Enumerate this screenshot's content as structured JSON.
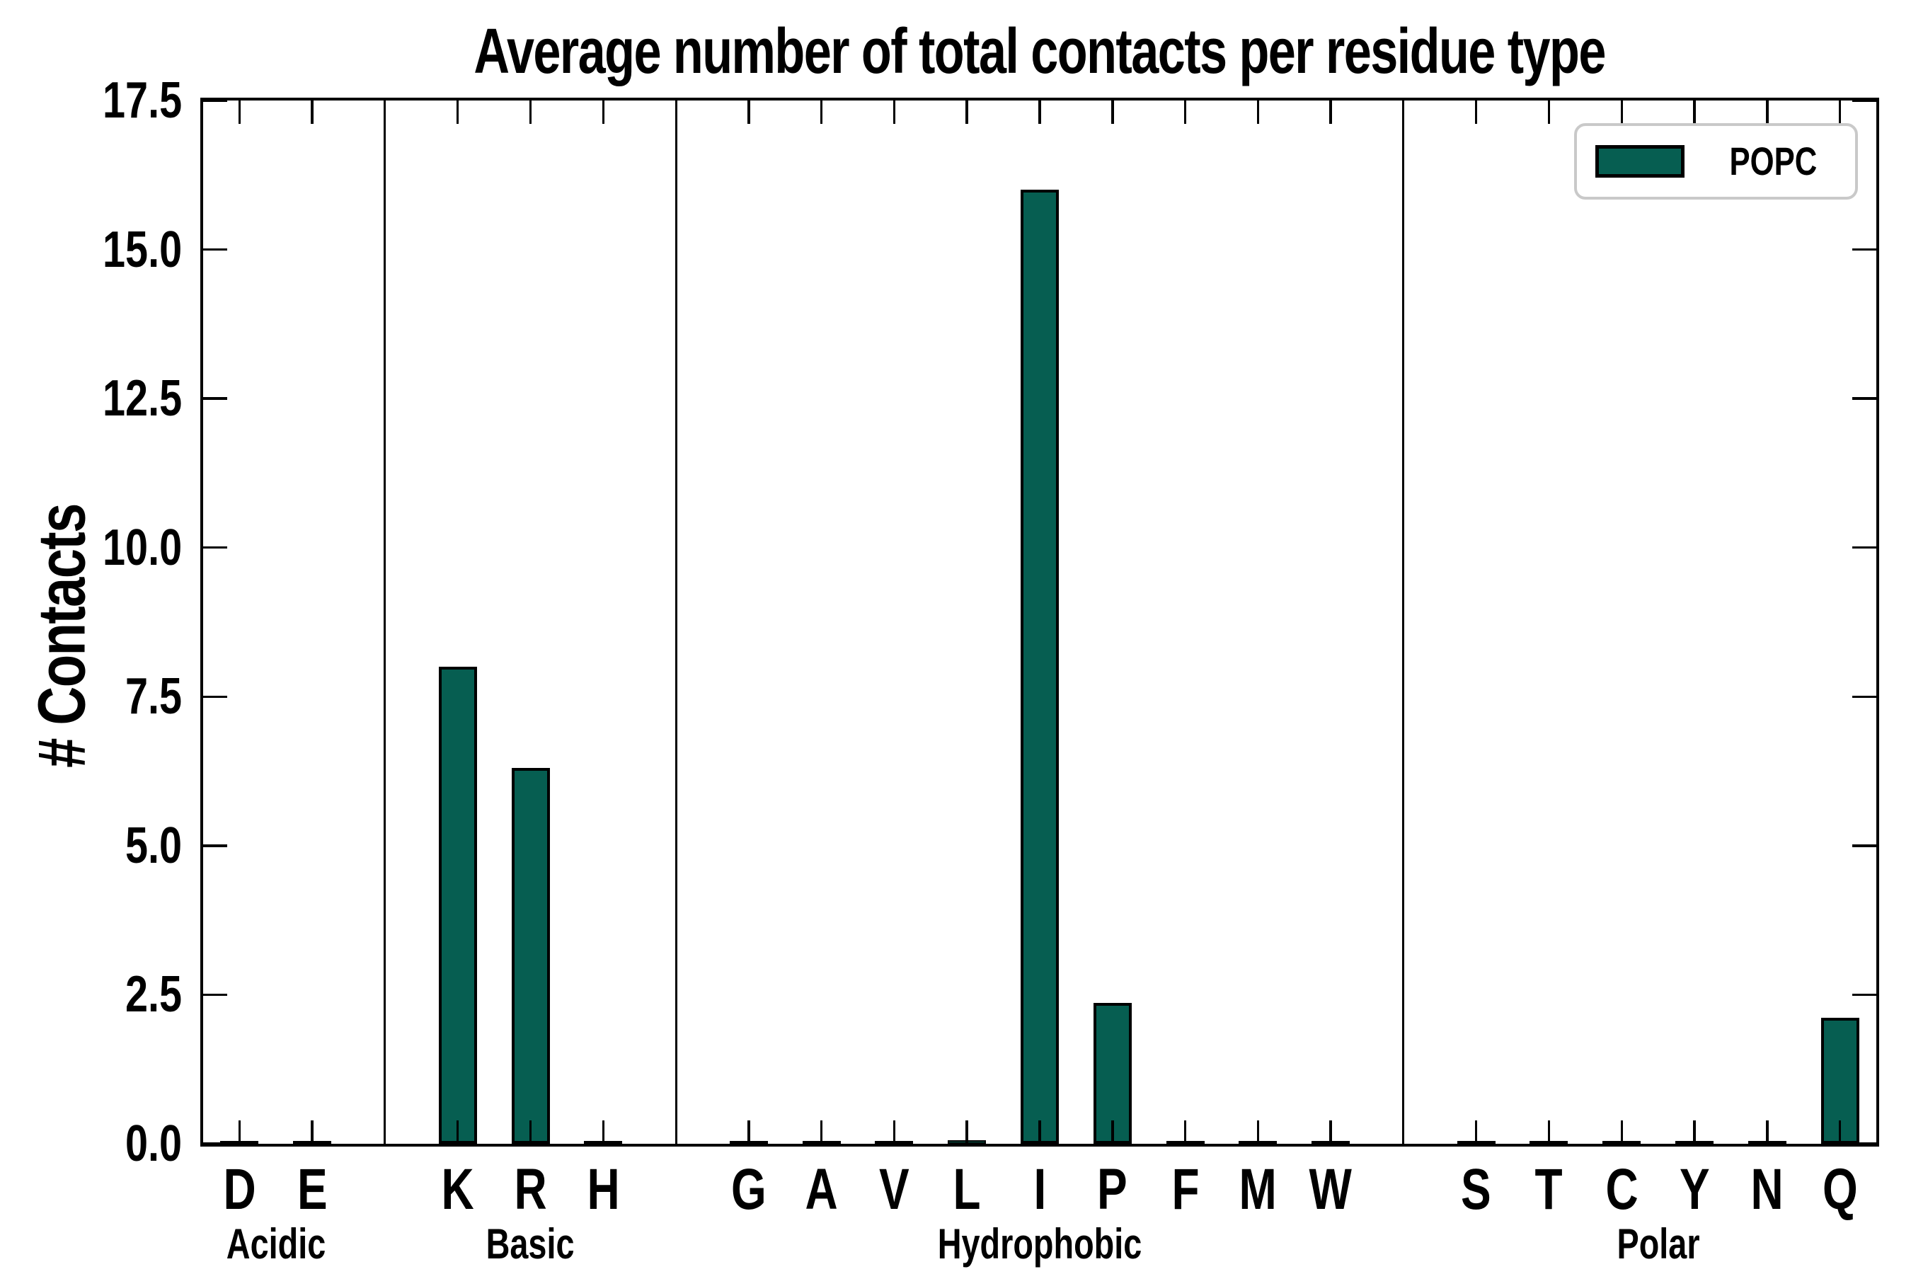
{
  "title": "Average number of total contacts per residue type",
  "y_axis_label": "# Contacts",
  "legend": {
    "label": "POPC",
    "position": "upper right"
  },
  "colors": {
    "bar_fill": "#065e51",
    "bar_edge": "#000000",
    "axis": "#000000",
    "legend_border": "#c9c9c9",
    "background": "#ffffff"
  },
  "chart_data": {
    "type": "bar",
    "title": "Average number of total contacts per residue type",
    "xlabel": "",
    "ylabel": "# Contacts",
    "categories": [
      "D",
      "E",
      "K",
      "R",
      "H",
      "G",
      "A",
      "V",
      "L",
      "I",
      "P",
      "F",
      "M",
      "W",
      "S",
      "T",
      "C",
      "Y",
      "N",
      "Q"
    ],
    "series": [
      {
        "name": "POPC",
        "values": [
          0.05,
          0.04,
          8.0,
          6.3,
          0.03,
          0.04,
          0.04,
          0.03,
          0.06,
          16.0,
          2.36,
          0.05,
          0.04,
          0.03,
          0.04,
          0.04,
          0.03,
          0.03,
          0.05,
          2.11
        ]
      }
    ],
    "groups": [
      {
        "label": "Acidic",
        "count": 2
      },
      {
        "label": "Basic",
        "count": 3
      },
      {
        "label": "Hydrophobic",
        "count": 9
      },
      {
        "label": "Polar",
        "count": 6
      }
    ],
    "ylim": [
      0,
      17.5
    ],
    "yticks": [
      0,
      2.5,
      5,
      7.5,
      10,
      12.5,
      15,
      17.5
    ],
    "ytick_labels": [
      "0.0",
      "2.5",
      "5.0",
      "7.5",
      "10.0",
      "12.5",
      "15.0",
      "17.5"
    ],
    "grid": false,
    "legend_position": "upper right",
    "group_separators": true,
    "ticks_direction": "in"
  }
}
